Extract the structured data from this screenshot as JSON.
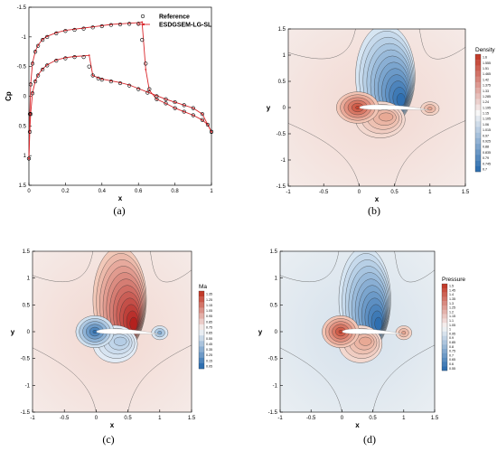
{
  "chart_data": [
    {
      "id": "a",
      "type": "line",
      "caption": "(a)",
      "xlabel": "x",
      "ylabel": "Cp",
      "xlim": [
        0,
        1
      ],
      "ylim": [
        1.5,
        -1.5
      ],
      "xticks": [
        "0",
        "0.2",
        "0.4",
        "0.6",
        "0.8",
        "1"
      ],
      "yticks": [
        "-1.5",
        "-1",
        "-0.5",
        "0",
        "0.5",
        "1",
        "1.5"
      ],
      "legend_position": "top-right",
      "series": [
        {
          "name": "Reference",
          "style": "circles",
          "color": "#000000",
          "upper": {
            "x": [
              0.0,
              0.005,
              0.01,
              0.02,
              0.035,
              0.05,
              0.075,
              0.1,
              0.15,
              0.2,
              0.25,
              0.3,
              0.35,
              0.4,
              0.45,
              0.5,
              0.55,
              0.6,
              0.62,
              0.64,
              0.66,
              0.7,
              0.75,
              0.8,
              0.85,
              0.9,
              0.95,
              0.98,
              1.0
            ],
            "y": [
              1.05,
              0.3,
              -0.2,
              -0.55,
              -0.75,
              -0.85,
              -0.95,
              -1.0,
              -1.06,
              -1.1,
              -1.12,
              -1.14,
              -1.16,
              -1.18,
              -1.2,
              -1.21,
              -1.22,
              -1.22,
              -0.95,
              -0.55,
              -0.12,
              0.05,
              0.12,
              0.2,
              0.26,
              0.32,
              0.4,
              0.48,
              0.6
            ]
          },
          "lower": {
            "x": [
              0.0,
              0.005,
              0.01,
              0.02,
              0.035,
              0.05,
              0.075,
              0.1,
              0.15,
              0.2,
              0.25,
              0.3,
              0.33,
              0.35,
              0.38,
              0.4,
              0.45,
              0.5,
              0.55,
              0.6,
              0.65,
              0.7,
              0.75,
              0.8,
              0.85,
              0.9,
              0.95,
              1.0
            ],
            "y": [
              1.05,
              0.6,
              0.3,
              -0.05,
              -0.25,
              -0.35,
              -0.45,
              -0.52,
              -0.6,
              -0.64,
              -0.66,
              -0.66,
              -0.5,
              -0.35,
              -0.3,
              -0.28,
              -0.25,
              -0.22,
              -0.18,
              -0.12,
              -0.06,
              0.0,
              0.05,
              0.1,
              0.15,
              0.2,
              0.3,
              0.6
            ]
          }
        },
        {
          "name": "ESDGSEM-LG-SL",
          "style": "line-with-markers",
          "color": "#d9252a",
          "upper": {
            "x": [
              0.0,
              0.005,
              0.01,
              0.02,
              0.035,
              0.05,
              0.075,
              0.1,
              0.15,
              0.2,
              0.25,
              0.3,
              0.35,
              0.4,
              0.45,
              0.5,
              0.55,
              0.6,
              0.62,
              0.64,
              0.66,
              0.7,
              0.75,
              0.8,
              0.85,
              0.9,
              0.95,
              0.98,
              1.0
            ],
            "y": [
              1.05,
              0.28,
              -0.22,
              -0.56,
              -0.76,
              -0.86,
              -0.96,
              -1.01,
              -1.07,
              -1.11,
              -1.13,
              -1.15,
              -1.17,
              -1.19,
              -1.21,
              -1.22,
              -1.23,
              -1.24,
              -1.25,
              -0.45,
              -0.1,
              0.05,
              0.12,
              0.2,
              0.26,
              0.32,
              0.4,
              0.48,
              0.6
            ]
          },
          "lower": {
            "x": [
              0.0,
              0.005,
              0.01,
              0.02,
              0.035,
              0.05,
              0.075,
              0.1,
              0.15,
              0.2,
              0.25,
              0.3,
              0.33,
              0.35,
              0.38,
              0.4,
              0.45,
              0.5,
              0.55,
              0.6,
              0.65,
              0.7,
              0.75,
              0.8,
              0.85,
              0.9,
              0.95,
              1.0
            ],
            "y": [
              1.05,
              0.58,
              0.28,
              -0.06,
              -0.26,
              -0.36,
              -0.46,
              -0.53,
              -0.61,
              -0.65,
              -0.67,
              -0.68,
              -0.69,
              -0.35,
              -0.31,
              -0.29,
              -0.26,
              -0.23,
              -0.19,
              -0.13,
              -0.07,
              -0.01,
              0.05,
              0.1,
              0.15,
              0.2,
              0.3,
              0.6
            ]
          }
        }
      ]
    },
    {
      "id": "b",
      "type": "heatmap",
      "caption": "(b)",
      "xlabel": "x",
      "ylabel": "y",
      "xlim": [
        -1,
        1.5
      ],
      "ylim": [
        -1.5,
        1.5
      ],
      "xticks": [
        "-1",
        "-0.5",
        "0",
        "0.5",
        "1",
        "1.5"
      ],
      "yticks": [
        "-1.5",
        "-1",
        "-0.5",
        "0",
        "0.5",
        "1",
        "1.5"
      ],
      "legend_title": "Density",
      "legend_values": [
        "1.6",
        "1.555",
        "1.51",
        "1.465",
        "1.42",
        "1.375",
        "1.33",
        "1.285",
        "1.24",
        "1.195",
        "1.15",
        "1.105",
        "1.06",
        "1.015",
        "0.97",
        "0.925",
        "0.88",
        "0.835",
        "0.79",
        "0.745",
        "0.7"
      ],
      "colors": {
        "low": "#2f6fb0",
        "mid": "#f7f7f7",
        "high": "#c23b2a"
      }
    },
    {
      "id": "c",
      "type": "heatmap",
      "caption": "(c)",
      "xlabel": "x",
      "ylabel": "y",
      "xlim": [
        -1,
        1.5
      ],
      "ylim": [
        -1.5,
        1.5
      ],
      "xticks": [
        "-1",
        "-0.5",
        "0",
        "0.5",
        "1",
        "1.5"
      ],
      "yticks": [
        "-1.5",
        "-1",
        "-0.5",
        "0",
        "0.5",
        "1",
        "1.5"
      ],
      "legend_title": "Ma",
      "legend_values": [
        "1.35",
        "1.25",
        "1.15",
        "1.05",
        "0.95",
        "0.85",
        "0.75",
        "0.65",
        "0.55",
        "0.45",
        "0.35",
        "0.25",
        "0.15",
        "0.05"
      ],
      "colors": {
        "low": "#2f6fb0",
        "mid": "#f7f7f7",
        "high": "#c23b2a"
      }
    },
    {
      "id": "d",
      "type": "heatmap",
      "caption": "(d)",
      "xlabel": "x",
      "ylabel": "y",
      "xlim": [
        -1,
        1.5
      ],
      "ylim": [
        -1.5,
        1.5
      ],
      "xticks": [
        "-1",
        "-0.5",
        "0",
        "0.5",
        "1",
        "1.5"
      ],
      "yticks": [
        "-1.5",
        "-1",
        "-0.5",
        "0",
        "0.5",
        "1",
        "1.5"
      ],
      "legend_title": "Pressure",
      "legend_values": [
        "1.5",
        "1.45",
        "1.4",
        "1.35",
        "1.3",
        "1.25",
        "1.2",
        "1.15",
        "1.1",
        "1.05",
        "1",
        "0.95",
        "0.9",
        "0.85",
        "0.8",
        "0.75",
        "0.7",
        "0.65",
        "0.6",
        "0.55"
      ],
      "colors": {
        "low": "#2f6fb0",
        "mid": "#f7f7f7",
        "high": "#c23b2a"
      }
    }
  ]
}
